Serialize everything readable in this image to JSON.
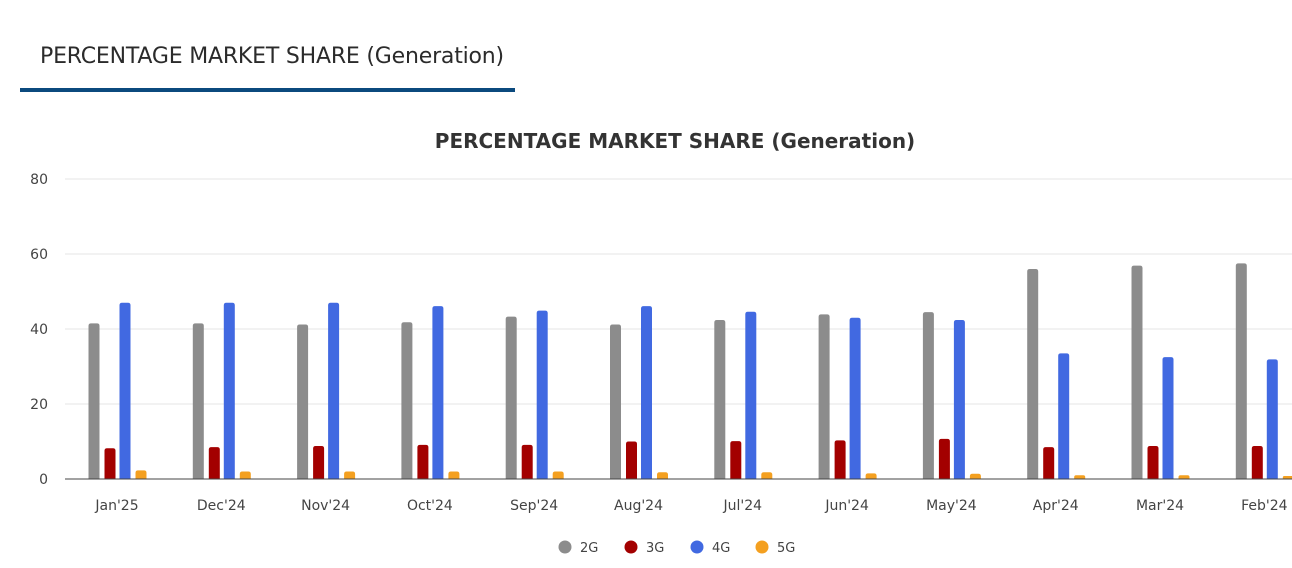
{
  "header": {
    "tab_title": "PERCENTAGE MARKET SHARE (Generation)"
  },
  "chart_data": {
    "type": "bar",
    "title": "PERCENTAGE MARKET SHARE (Generation)",
    "xlabel": "",
    "ylabel": "",
    "ylim": [
      0,
      80
    ],
    "yticks": [
      0,
      20,
      40,
      60,
      80
    ],
    "grid": true,
    "legend_position": "bottom",
    "categories": [
      "Jan'25",
      "Dec'24",
      "Nov'24",
      "Oct'24",
      "Sep'24",
      "Aug'24",
      "Jul'24",
      "Jun'24",
      "May'24",
      "Apr'24",
      "Mar'24",
      "Feb'24"
    ],
    "series": [
      {
        "name": "2G",
        "color": "#8c8c8c",
        "values": [
          41.5,
          41.5,
          41.2,
          41.8,
          43.3,
          41.2,
          42.4,
          43.9,
          44.5,
          56.0,
          56.9,
          57.5
        ]
      },
      {
        "name": "3G",
        "color": "#a30000",
        "values": [
          8.2,
          8.5,
          8.8,
          9.1,
          9.1,
          10.0,
          10.1,
          10.3,
          10.7,
          8.5,
          8.8,
          8.8
        ]
      },
      {
        "name": "4G",
        "color": "#4169e1",
        "values": [
          47.0,
          47.0,
          47.0,
          46.1,
          44.9,
          46.1,
          44.6,
          43.0,
          42.4,
          33.5,
          32.5,
          31.9
        ]
      },
      {
        "name": "5G",
        "color": "#f4a020",
        "values": [
          2.3,
          2.0,
          2.0,
          2.0,
          2.0,
          1.8,
          1.8,
          1.5,
          1.4,
          1.0,
          1.0,
          0.8
        ]
      }
    ]
  }
}
